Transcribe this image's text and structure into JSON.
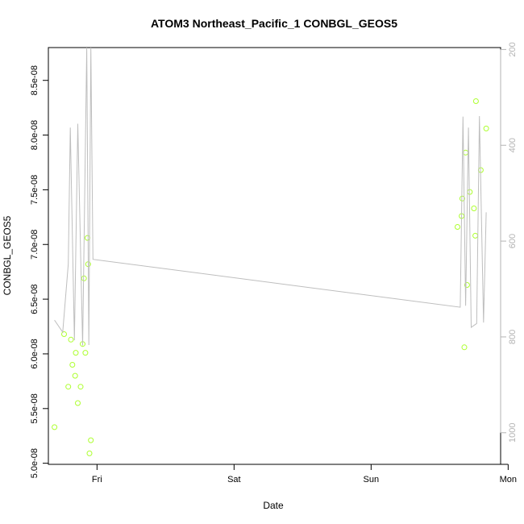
{
  "chart_data": {
    "type": "scatter",
    "title": "ATOM3 Northeast_Pacific_1 CONBGL_GEOS5",
    "xlabel": "Date",
    "ylabel": "CONBGL_GEOS5",
    "x_ticks": [
      "Fri",
      "Sat",
      "Sun",
      "Mon"
    ],
    "y_ticks": [
      "5.0e-08",
      "5.5e-08",
      "6.0e-08",
      "6.5e-08",
      "7.0e-08",
      "7.5e-08",
      "8.0e-08",
      "8.5e-08"
    ],
    "y_tick_values": [
      5e-08,
      5.5e-08,
      6e-08,
      6.5e-08,
      7e-08,
      7.5e-08,
      8e-08,
      8.5e-08
    ],
    "right_ticks": [
      "200",
      "400",
      "600",
      "800",
      "1000"
    ],
    "right_tick_values": [
      200,
      400,
      600,
      800,
      1000
    ],
    "xlim": [
      -0.355,
      2.945
    ],
    "ylim": [
      4.99e-08,
      8.8e-08
    ],
    "right_ylim": [
      1066,
      196
    ],
    "grid": false,
    "series": [
      {
        "type": "points",
        "color": "#adff2f",
        "x": [
          -0.31,
          -0.24,
          -0.21,
          -0.19,
          -0.18,
          -0.16,
          -0.155,
          -0.14,
          -0.12,
          -0.105,
          -0.095,
          -0.085,
          -0.07,
          -0.065,
          -0.055,
          -0.045,
          2.63,
          2.66,
          2.665,
          2.68,
          2.69,
          2.7,
          2.72,
          2.75,
          2.76,
          2.765,
          2.8,
          2.84
        ],
        "y": [
          5.33e-08,
          6.18e-08,
          5.7e-08,
          6.13e-08,
          5.9e-08,
          5.8e-08,
          6.01e-08,
          5.55e-08,
          5.7e-08,
          6.09e-08,
          6.69e-08,
          6.01e-08,
          7.06e-08,
          6.82e-08,
          5.09e-08,
          5.21e-08,
          7.16e-08,
          7.26e-08,
          7.42e-08,
          6.06e-08,
          7.84e-08,
          6.63e-08,
          7.48e-08,
          7.33e-08,
          7.08e-08,
          8.31e-08,
          7.68e-08,
          8.06e-08
        ]
      },
      {
        "type": "line",
        "color": "#bebebe",
        "axis": "right",
        "x": [
          -0.31,
          -0.25,
          -0.21,
          -0.195,
          -0.165,
          -0.14,
          -0.105,
          -0.075,
          -0.06,
          -0.045,
          -0.03,
          2.65,
          2.67,
          2.69,
          2.71,
          2.73,
          2.77,
          2.79,
          2.82,
          2.84
        ],
        "y": [
          765,
          790,
          648,
          363,
          807,
          355,
          818,
          196,
          817,
          196,
          638,
          738,
          340,
          735,
          363,
          780,
          772,
          339,
          770,
          540
        ]
      }
    ]
  }
}
